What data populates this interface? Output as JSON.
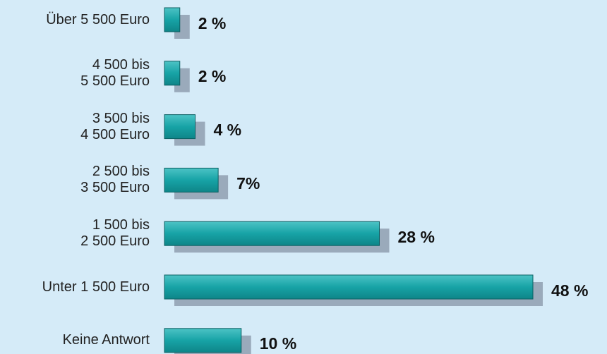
{
  "chart_data": {
    "type": "bar",
    "orientation": "horizontal",
    "categories": [
      "Über 5 500 Euro",
      "4 500 bis\n5 500 Euro",
      "3 500 bis\n4 500 Euro",
      "2 500 bis\n3 500 Euro",
      "1 500 bis\n2 500 Euro",
      "Unter 1 500 Euro",
      "Keine Antwort"
    ],
    "values": [
      2,
      2,
      4,
      7,
      28,
      48,
      10
    ],
    "value_labels": [
      "2 %",
      "2 %",
      "4 %",
      "7%",
      "28 %",
      "48 %",
      "10 %"
    ],
    "color": "#17a3a6"
  }
}
